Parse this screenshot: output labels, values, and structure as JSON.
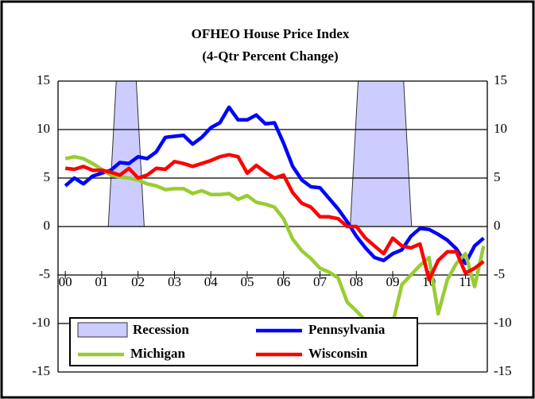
{
  "chart_data": {
    "type": "line",
    "title": "OFHEO House Price Index",
    "subtitle": "(4-Qtr Percent Change)",
    "x": [
      2000,
      2000.25,
      2000.5,
      2000.75,
      2001,
      2001.25,
      2001.5,
      2001.75,
      2002,
      2002.25,
      2002.5,
      2002.75,
      2003,
      2003.25,
      2003.5,
      2003.75,
      2004,
      2004.25,
      2004.5,
      2004.75,
      2005,
      2005.25,
      2005.5,
      2005.75,
      2006,
      2006.25,
      2006.5,
      2006.75,
      2007,
      2007.25,
      2007.5,
      2007.75,
      2008,
      2008.25,
      2008.5,
      2008.75,
      2009,
      2009.25,
      2009.5,
      2009.75,
      2010,
      2010.25,
      2010.5,
      2010.75,
      2011,
      2011.25,
      2011.5
    ],
    "series": [
      {
        "name": "Pennsylvania",
        "color": "#0000ff",
        "values": [
          4.2,
          5,
          4.4,
          5.2,
          5.5,
          5.8,
          6.6,
          6.5,
          7.2,
          7.0,
          7.7,
          9.2,
          9.3,
          9.4,
          8.5,
          9.2,
          10.2,
          10.7,
          12.3,
          11.0,
          11.0,
          11.5,
          10.6,
          10.7,
          8.6,
          6.2,
          4.8,
          4.1,
          4.0,
          2.9,
          1.8,
          0.5,
          -1.0,
          -2.2,
          -3.2,
          -3.5,
          -2.8,
          -2.4,
          -1.0,
          -0.2,
          -0.3,
          -0.8,
          -1.4,
          -2.3,
          -3.8,
          -2.0,
          -1.2
        ]
      },
      {
        "name": "Michigan",
        "color": "#99cc33",
        "values": [
          7.0,
          7.2,
          7.0,
          6.5,
          5.9,
          5.3,
          5.1,
          5.0,
          4.8,
          4.4,
          4.2,
          3.8,
          3.9,
          3.9,
          3.4,
          3.7,
          3.3,
          3.3,
          3.4,
          2.8,
          3.2,
          2.5,
          2.3,
          2.0,
          0.8,
          -1.3,
          -2.5,
          -3.3,
          -4.3,
          -4.7,
          -5.3,
          -7.8,
          -8.7,
          -9.7,
          -11.5,
          -13.0,
          -10.0,
          -6.0,
          -5.0,
          -4.0,
          -3.2,
          -9.0,
          -5.5,
          -3.8,
          -2.8,
          -6.2,
          -2.0
        ]
      },
      {
        "name": "Wisconsin",
        "color": "#ff0000",
        "values": [
          6.0,
          5.9,
          6.2,
          5.8,
          5.8,
          5.6,
          5.3,
          6.0,
          5.0,
          5.3,
          6.0,
          5.9,
          6.7,
          6.5,
          6.2,
          6.5,
          6.8,
          7.2,
          7.4,
          7.2,
          5.5,
          6.3,
          5.6,
          5.0,
          5.3,
          3.5,
          2.4,
          2.0,
          1.0,
          1.0,
          0.8,
          0.0,
          0.0,
          -1.2,
          -2.0,
          -2.8,
          -1.2,
          -2.0,
          -2.2,
          -1.8,
          -5.5,
          -3.5,
          -2.6,
          -2.6,
          -4.8,
          -4.3,
          -3.6
        ]
      }
    ],
    "recession": {
      "name": "Recession",
      "color": "#ccccff",
      "spans": [
        [
          2001.4,
          2001.95
        ],
        [
          2008.05,
          2009.3
        ]
      ]
    },
    "xlim": [
      1999.8,
      2011.6
    ],
    "xticks": [
      {
        "value": 2000,
        "label": "00"
      },
      {
        "value": 2001,
        "label": "01"
      },
      {
        "value": 2002,
        "label": "02"
      },
      {
        "value": 2003,
        "label": "03"
      },
      {
        "value": 2004,
        "label": "04"
      },
      {
        "value": 2005,
        "label": "05"
      },
      {
        "value": 2006,
        "label": "06"
      },
      {
        "value": 2007,
        "label": "07"
      },
      {
        "value": 2008,
        "label": "08"
      },
      {
        "value": 2009,
        "label": "09"
      },
      {
        "value": 2010,
        "label": "10"
      },
      {
        "value": 2011,
        "label": "11"
      }
    ],
    "ylim": [
      -15,
      15
    ],
    "yticks": [
      -15,
      -10,
      -5,
      0,
      5,
      10,
      15
    ],
    "grid": true
  }
}
